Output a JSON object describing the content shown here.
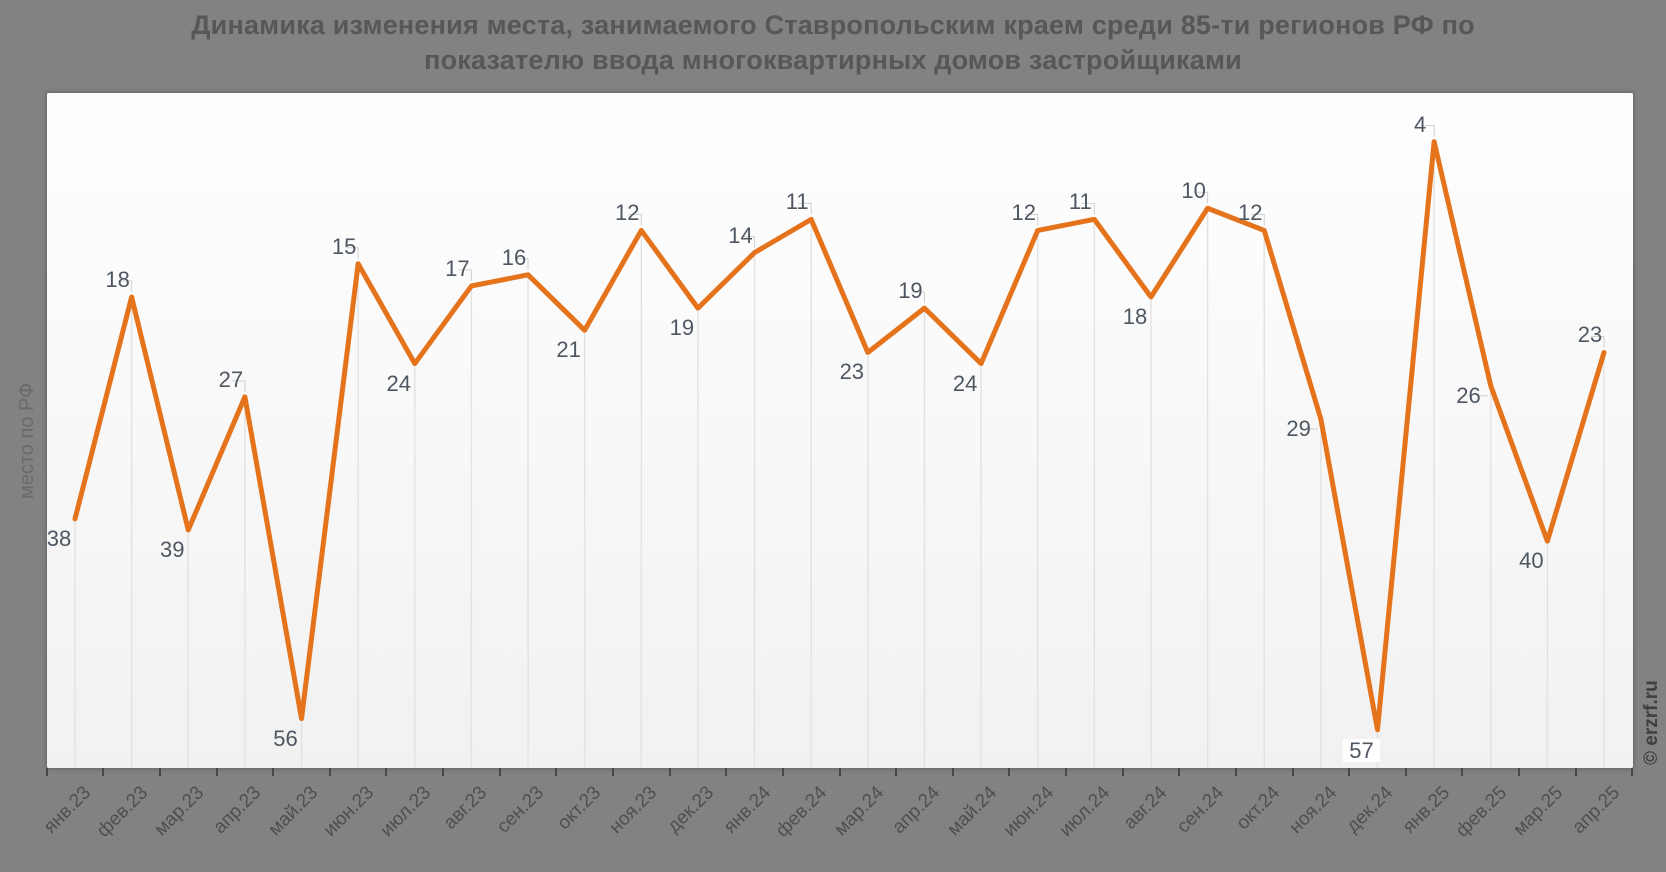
{
  "title": {
    "line1": "Динамика изменения места, занимаемого Ставропольским краем среди 85-ти регионов РФ по",
    "line2": "показателю ввода многоквартирных домов застройщиками"
  },
  "y_axis": {
    "label": "место по РФ"
  },
  "watermark": "© erzrf.ru",
  "chart_data": {
    "type": "line",
    "title": "Динамика изменения места, занимаемого Ставропольским краем среди 85-ти регионов РФ по показателю ввода многоквартирных домов застройщиками",
    "xlabel": "",
    "ylabel": "место по РФ",
    "y_axis_inverted": true,
    "ylim": [
      0,
      60
    ],
    "grid": "vertical drop-lines from each point to x-axis, no horizontal gridlines",
    "legend": "none",
    "series_name": "место по РФ",
    "categories": [
      "янв.23",
      "фев.23",
      "мар.23",
      "апр.23",
      "май.23",
      "июн.23",
      "июл.23",
      "авг.23",
      "сен.23",
      "окт.23",
      "ноя.23",
      "дек.23",
      "янв.24",
      "фев.24",
      "мар.24",
      "апр.24",
      "май.24",
      "июн.24",
      "июл.24",
      "авг.24",
      "сен.24",
      "окт.24",
      "ноя.24",
      "дек.24",
      "янв.25",
      "фев.25",
      "мар.25",
      "апр.25"
    ],
    "values": [
      38,
      18,
      39,
      27,
      56,
      15,
      24,
      17,
      16,
      21,
      12,
      19,
      14,
      11,
      23,
      19,
      24,
      12,
      11,
      18,
      10,
      12,
      29,
      57,
      4,
      26,
      40,
      23
    ],
    "label_placements": [
      "below",
      "above",
      "below",
      "above",
      "below",
      "above",
      "below",
      "above",
      "above",
      "below",
      "above",
      "below",
      "above",
      "above",
      "below",
      "above",
      "below",
      "above",
      "above",
      "below",
      "above",
      "above",
      "left",
      "below-boxed",
      "above",
      "left",
      "below",
      "above"
    ]
  },
  "colors": {
    "page_bg": "#828282",
    "plot_bg_top": "#fefefe",
    "plot_bg_bottom": "#f1f1f1",
    "line": "#e4731c",
    "title_text": "#575757",
    "axis_text": "#4f4f4f",
    "data_label_text": "#4e5761",
    "y_axis_label_text": "#6a6a6a",
    "watermark_text": "#3f3f3f",
    "drop_line": "#e2e2e2",
    "connector_line": "#cfcfcf",
    "tick": "#484848"
  }
}
